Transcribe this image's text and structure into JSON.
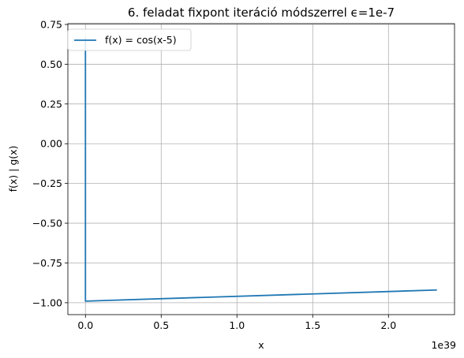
{
  "chart_data": {
    "type": "line",
    "title": "6. feladat fixpont iteráció módszerrel ϵ=1e-7",
    "xlabel": "x",
    "ylabel": "f(x) | g(x)",
    "x_offset_text": "1e39",
    "xlim": [
      -0.116,
      2.436
    ],
    "ylim": [
      -1.075,
      0.755
    ],
    "x_ticks": [
      0.0,
      0.5,
      1.0,
      1.5,
      2.0
    ],
    "x_tick_labels": [
      "0.0",
      "0.5",
      "1.0",
      "1.5",
      "2.0"
    ],
    "y_ticks": [
      0.75,
      0.5,
      0.25,
      0.0,
      -0.25,
      -0.5,
      -0.75,
      -1.0
    ],
    "y_tick_labels": [
      "0.75",
      "0.50",
      "0.25",
      "0.00",
      "−0.25",
      "−0.50",
      "−0.75",
      "−1.00"
    ],
    "grid": true,
    "legend_position": "upper-left",
    "series": [
      {
        "name": "f(x) = cos(x-5)",
        "color": "#1f77b4",
        "x": [
          0.0,
          0.0,
          2.32
        ],
        "y": [
          0.67,
          -0.99,
          -0.92
        ]
      }
    ]
  }
}
